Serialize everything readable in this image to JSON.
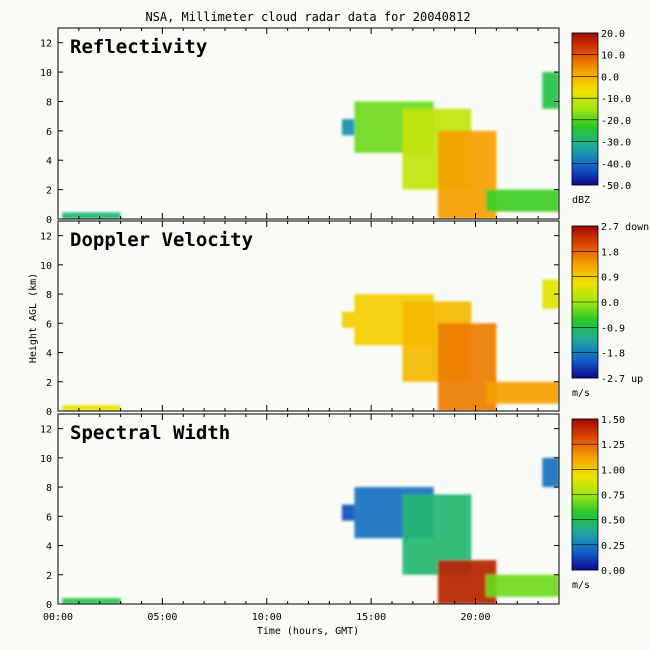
{
  "figure": {
    "title": "NSA, Millimeter cloud radar data for 20040812",
    "y_axis_label": "Height AGL (km)",
    "x_axis_label": "Time (hours, GMT)",
    "x_tick_labels": [
      "00:00",
      "05:00",
      "10:00",
      "15:00",
      "20:00"
    ]
  },
  "chart_data": [
    {
      "type": "heatmap",
      "title": "Reflectivity",
      "xlabel": "Time (hours, GMT)",
      "ylabel": "Height AGL (km)",
      "xlim": [
        0,
        24
      ],
      "ylim": [
        0,
        13
      ],
      "y_ticks": [
        0,
        2,
        4,
        6,
        8,
        10,
        12
      ],
      "colorbar": {
        "unit": "dBZ",
        "range": [
          -50,
          20
        ],
        "ticks": [
          "20.0",
          "10.0",
          "0.0",
          "-10.0",
          "-20.0",
          "-30.0",
          "-40.0",
          "-50.0"
        ]
      },
      "features": [
        {
          "t0": 0.2,
          "t1": 3.0,
          "h0": 0.0,
          "h1": 0.45,
          "level": 0.3
        },
        {
          "t0": 13.6,
          "t1": 14.2,
          "h0": 5.7,
          "h1": 6.8,
          "level": 0.2
        },
        {
          "t0": 14.2,
          "t1": 18.0,
          "h0": 4.5,
          "h1": 8.0,
          "level": 0.45
        },
        {
          "t0": 16.5,
          "t1": 19.8,
          "h0": 2.0,
          "h1": 7.5,
          "level": 0.55
        },
        {
          "t0": 18.2,
          "t1": 21.0,
          "h0": 0.0,
          "h1": 6.0,
          "level": 0.75
        },
        {
          "t0": 20.5,
          "t1": 24.0,
          "h0": 0.5,
          "h1": 2.0,
          "level": 0.4
        },
        {
          "t0": 23.2,
          "t1": 24.0,
          "h0": 7.5,
          "h1": 10.0,
          "level": 0.35
        }
      ]
    },
    {
      "type": "heatmap",
      "title": "Doppler Velocity",
      "xlabel": "Time (hours, GMT)",
      "ylabel": "Height AGL (km)",
      "xlim": [
        0,
        24
      ],
      "ylim": [
        0,
        13
      ],
      "y_ticks": [
        0,
        2,
        4,
        6,
        8,
        10,
        12
      ],
      "colorbar": {
        "unit": "m/s",
        "range": [
          -2.7,
          2.7
        ],
        "ticks": [
          "2.7 down",
          "1.8",
          "0.9",
          "0.0",
          "-0.9",
          "-1.8",
          "-2.7 up"
        ]
      },
      "features": [
        {
          "t0": 0.2,
          "t1": 3.0,
          "h0": 0.0,
          "h1": 0.4,
          "level": 0.62
        },
        {
          "t0": 13.6,
          "t1": 14.2,
          "h0": 5.7,
          "h1": 6.8,
          "level": 0.66
        },
        {
          "t0": 14.2,
          "t1": 18.0,
          "h0": 4.5,
          "h1": 8.0,
          "level": 0.66
        },
        {
          "t0": 16.5,
          "t1": 19.8,
          "h0": 2.0,
          "h1": 7.5,
          "level": 0.7
        },
        {
          "t0": 18.2,
          "t1": 21.0,
          "h0": 0.0,
          "h1": 6.0,
          "level": 0.8
        },
        {
          "t0": 20.5,
          "t1": 24.0,
          "h0": 0.5,
          "h1": 2.0,
          "level": 0.75
        },
        {
          "t0": 23.2,
          "t1": 24.0,
          "h0": 7.0,
          "h1": 9.0,
          "level": 0.6
        }
      ]
    },
    {
      "type": "heatmap",
      "title": "Spectral Width",
      "xlabel": "Time (hours, GMT)",
      "ylabel": "Height AGL (km)",
      "xlim": [
        0,
        24
      ],
      "ylim": [
        0,
        13
      ],
      "y_ticks": [
        0,
        2,
        4,
        6,
        8,
        10,
        12
      ],
      "colorbar": {
        "unit": "m/s",
        "range": [
          0,
          1.5
        ],
        "ticks": [
          "1.50",
          "1.25",
          "1.00",
          "0.75",
          "0.50",
          "0.25",
          "0.00"
        ]
      },
      "features": [
        {
          "t0": 0.2,
          "t1": 3.0,
          "h0": 0.0,
          "h1": 0.4,
          "level": 0.35
        },
        {
          "t0": 13.6,
          "t1": 14.2,
          "h0": 5.7,
          "h1": 6.8,
          "level": 0.1
        },
        {
          "t0": 14.2,
          "t1": 18.0,
          "h0": 4.5,
          "h1": 8.0,
          "level": 0.15
        },
        {
          "t0": 16.5,
          "t1": 19.8,
          "h0": 2.0,
          "h1": 7.5,
          "level": 0.3
        },
        {
          "t0": 18.2,
          "t1": 21.0,
          "h0": 0.0,
          "h1": 3.0,
          "level": 0.95
        },
        {
          "t0": 20.5,
          "t1": 24.0,
          "h0": 0.5,
          "h1": 2.0,
          "level": 0.45
        },
        {
          "t0": 23.2,
          "t1": 24.0,
          "h0": 8.0,
          "h1": 10.0,
          "level": 0.15
        }
      ]
    }
  ]
}
